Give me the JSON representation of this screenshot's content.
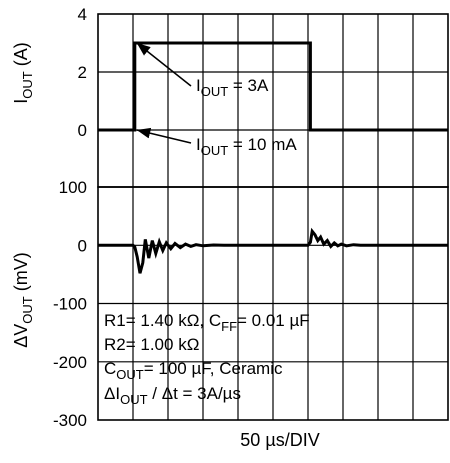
{
  "chart_data": {
    "type": "line",
    "x_axis_label": "50 µs/DIV",
    "x_divisions": 10,
    "panels": [
      {
        "name": "top",
        "ylabel_main": "I",
        "ylabel_sub": "OUT",
        "ylabel_tail": " (A)",
        "ylim": [
          0,
          4
        ],
        "ticks": [
          {
            "value": 4,
            "label": "4"
          },
          {
            "value": 2,
            "label": "2"
          },
          {
            "value": 0,
            "label": "0"
          }
        ],
        "series": [
          {
            "values": [
              {
                "x": 0,
                "y": 0
              },
              {
                "x": 1.05,
                "y": 0
              },
              {
                "x": 1.05,
                "y": 3
              },
              {
                "x": 6.07,
                "y": 3
              },
              {
                "x": 6.07,
                "y": 0
              },
              {
                "x": 10,
                "y": 0
              }
            ]
          }
        ],
        "annotations": [
          {
            "main": "I",
            "sub": "OUT",
            "tail": " = 3A",
            "target": {
              "x": 1.05,
              "y": 3
            }
          },
          {
            "main": "I",
            "sub": "OUT",
            "tail": " = 10 mA",
            "target": {
              "x": 1.05,
              "y": 0
            }
          }
        ]
      },
      {
        "name": "bottom",
        "ylabel_main": "ΔV",
        "ylabel_sub": "OUT",
        "ylabel_tail": " (mV)",
        "ylim": [
          -300,
          100
        ],
        "ticks": [
          {
            "value": 100,
            "label": "100"
          },
          {
            "value": 0,
            "label": "0"
          },
          {
            "value": -100,
            "label": "-100"
          },
          {
            "value": -200,
            "label": "-200"
          },
          {
            "value": -300,
            "label": "-300"
          }
        ],
        "series": [
          {
            "values": [
              {
                "x": 0,
                "y": 0
              },
              {
                "x": 1.0,
                "y": 0
              },
              {
                "x": 1.05,
                "y": -3
              },
              {
                "x": 1.12,
                "y": -20
              },
              {
                "x": 1.2,
                "y": -48
              },
              {
                "x": 1.28,
                "y": -30
              },
              {
                "x": 1.35,
                "y": 10
              },
              {
                "x": 1.45,
                "y": -22
              },
              {
                "x": 1.55,
                "y": 8
              },
              {
                "x": 1.65,
                "y": -14
              },
              {
                "x": 1.75,
                "y": 6
              },
              {
                "x": 1.85,
                "y": -9
              },
              {
                "x": 1.95,
                "y": 4
              },
              {
                "x": 2.08,
                "y": -6
              },
              {
                "x": 2.2,
                "y": 3
              },
              {
                "x": 2.35,
                "y": -4
              },
              {
                "x": 2.5,
                "y": 2
              },
              {
                "x": 2.65,
                "y": -2
              },
              {
                "x": 2.8,
                "y": 1
              },
              {
                "x": 3.0,
                "y": -1
              },
              {
                "x": 3.3,
                "y": 0.5
              },
              {
                "x": 3.6,
                "y": 0
              },
              {
                "x": 6.0,
                "y": 0
              },
              {
                "x": 6.07,
                "y": 5
              },
              {
                "x": 6.12,
                "y": 24
              },
              {
                "x": 6.2,
                "y": 18
              },
              {
                "x": 6.28,
                "y": 8
              },
              {
                "x": 6.36,
                "y": 14
              },
              {
                "x": 6.45,
                "y": 2
              },
              {
                "x": 6.55,
                "y": 8
              },
              {
                "x": 6.65,
                "y": -2
              },
              {
                "x": 6.75,
                "y": 4
              },
              {
                "x": 6.85,
                "y": -1
              },
              {
                "x": 6.95,
                "y": 2
              },
              {
                "x": 7.1,
                "y": -1
              },
              {
                "x": 7.3,
                "y": 1
              },
              {
                "x": 7.5,
                "y": 0
              },
              {
                "x": 10,
                "y": 0
              }
            ]
          }
        ]
      }
    ],
    "notes": [
      [
        {
          "t": "R1= 1.40 kΩ, C"
        },
        {
          "t": "FF",
          "sub": true
        },
        {
          "t": "= 0.01 µF"
        }
      ],
      [
        {
          "t": "R2= 1.00 kΩ"
        }
      ],
      [
        {
          "t": "C"
        },
        {
          "t": "OUT",
          "sub": true
        },
        {
          "t": "= 100 µF, Ceramic"
        }
      ],
      [
        {
          "t": "ΔI"
        },
        {
          "t": "OUT",
          "sub": true
        },
        {
          "t": " / Δt = 3A/µs"
        }
      ]
    ]
  }
}
